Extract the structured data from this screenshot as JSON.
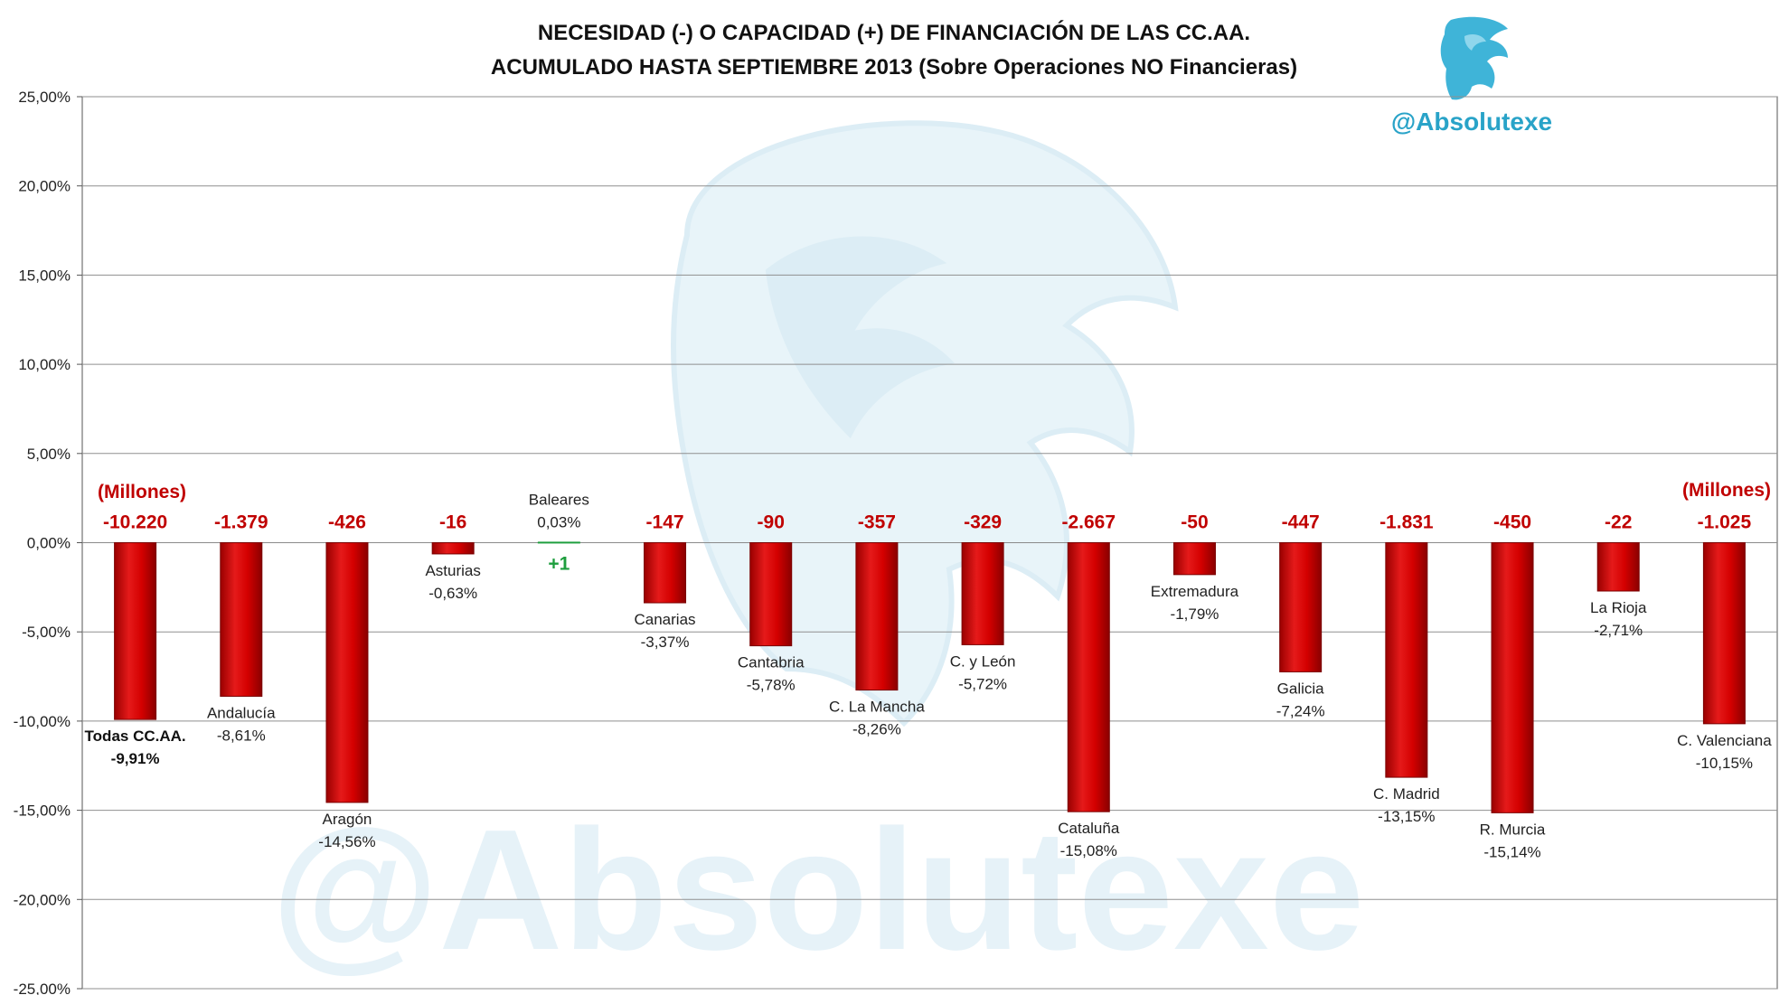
{
  "title_lines": [
    "NECESIDAD (-) O CAPACIDAD (+) DE FINANCIACIÓN DE LAS CC.AA.",
    "ACUMULADO HASTA SEPTIEMBRE 2013 (Sobre Operaciones NO Financieras)"
  ],
  "brand": {
    "handle": "@Absolutexe",
    "logo_icon": "griffin-logo-icon",
    "color": "#29a3c8"
  },
  "watermark": {
    "text": "@Absolutexe",
    "icon": "griffin-watermark-icon",
    "color": "#e3f1f7"
  },
  "colors": {
    "negative_bar": "#cc0000",
    "positive_bar": "#1e9e3e",
    "millions_negative": "#c00000",
    "millions_positive": "#1e9e3e"
  },
  "units_label": "(Millones)",
  "chart_data": {
    "type": "bar",
    "title": "NECESIDAD (-) O CAPACIDAD (+) DE FINANCIACIÓN DE LAS CC.AA. ACUMULADO HASTA SEPTIEMBRE 2013 (Sobre Operaciones NO Financieras)",
    "ylim": [
      -25,
      25
    ],
    "y_ticks": [
      25,
      20,
      15,
      10,
      5,
      0,
      -5,
      -10,
      -15,
      -20,
      -25
    ],
    "y_tick_labels": [
      "25,00%",
      "20,00%",
      "15,00%",
      "10,00%",
      "5,00%",
      "0,00%",
      "-5,00%",
      "-10,00%",
      "-15,00%",
      "-20,00%",
      "-25,00%"
    ],
    "grid": true,
    "categories": [
      "Todas CC.AA.",
      "Andalucía",
      "Aragón",
      "Asturias",
      "Baleares",
      "Canarias",
      "Cantabria",
      "C. La Mancha",
      "C. y León",
      "Cataluña",
      "Extremadura",
      "Galicia",
      "C. Madrid",
      "R. Murcia",
      "La Rioja",
      "C. Valenciana"
    ],
    "values": [
      -9.91,
      -8.61,
      -14.56,
      -0.63,
      0.03,
      -3.37,
      -5.78,
      -8.26,
      -5.72,
      -15.08,
      -1.79,
      -7.24,
      -13.15,
      -15.14,
      -2.71,
      -10.15
    ],
    "value_labels": [
      "-9,91%",
      "-8,61%",
      "-14,56%",
      "-0,63%",
      "0,03%",
      "-3,37%",
      "-5,78%",
      "-8,26%",
      "-5,72%",
      "-15,08%",
      "-1,79%",
      "-7,24%",
      "-13,15%",
      "-15,14%",
      "-2,71%",
      "-10,15%"
    ],
    "millions_labels": [
      "-10.220",
      "-1.379",
      "-426",
      "-16",
      "+1",
      "-147",
      "-90",
      "-357",
      "-329",
      "-2.667",
      "-50",
      "-447",
      "-1.831",
      "-450",
      "-22",
      "-1.025"
    ],
    "millions_values": [
      -10220,
      -1379,
      -426,
      -16,
      1,
      -147,
      -90,
      -357,
      -329,
      -2667,
      -50,
      -447,
      -1831,
      -450,
      -22,
      -1025
    ]
  }
}
